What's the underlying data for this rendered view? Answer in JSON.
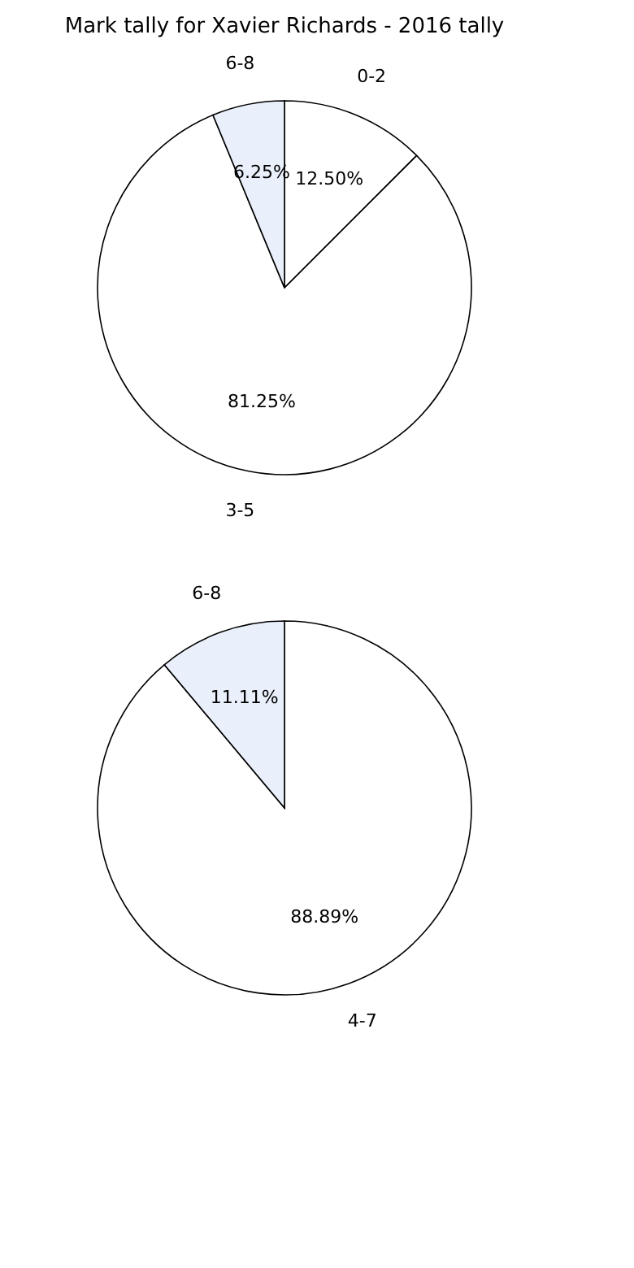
{
  "chart_data": [
    {
      "type": "pie",
      "title": "Mark tally for Xavier Richards - 2016 tally",
      "categories": [
        "0-2",
        "3-5",
        "6-8"
      ],
      "values": [
        12.5,
        81.25,
        6.25
      ],
      "value_labels": [
        "12.50%",
        "81.25%",
        "6.25%"
      ],
      "colors": [
        "#ffffff",
        "#ffffff",
        "#eaf0fb"
      ],
      "legend": false
    },
    {
      "type": "pie",
      "categories": [
        "4-7",
        "6-8"
      ],
      "values": [
        88.89,
        11.11
      ],
      "value_labels": [
        "88.89%",
        "11.11%"
      ],
      "colors": [
        "#ffffff",
        "#eaf0fb"
      ],
      "legend": false
    }
  ]
}
